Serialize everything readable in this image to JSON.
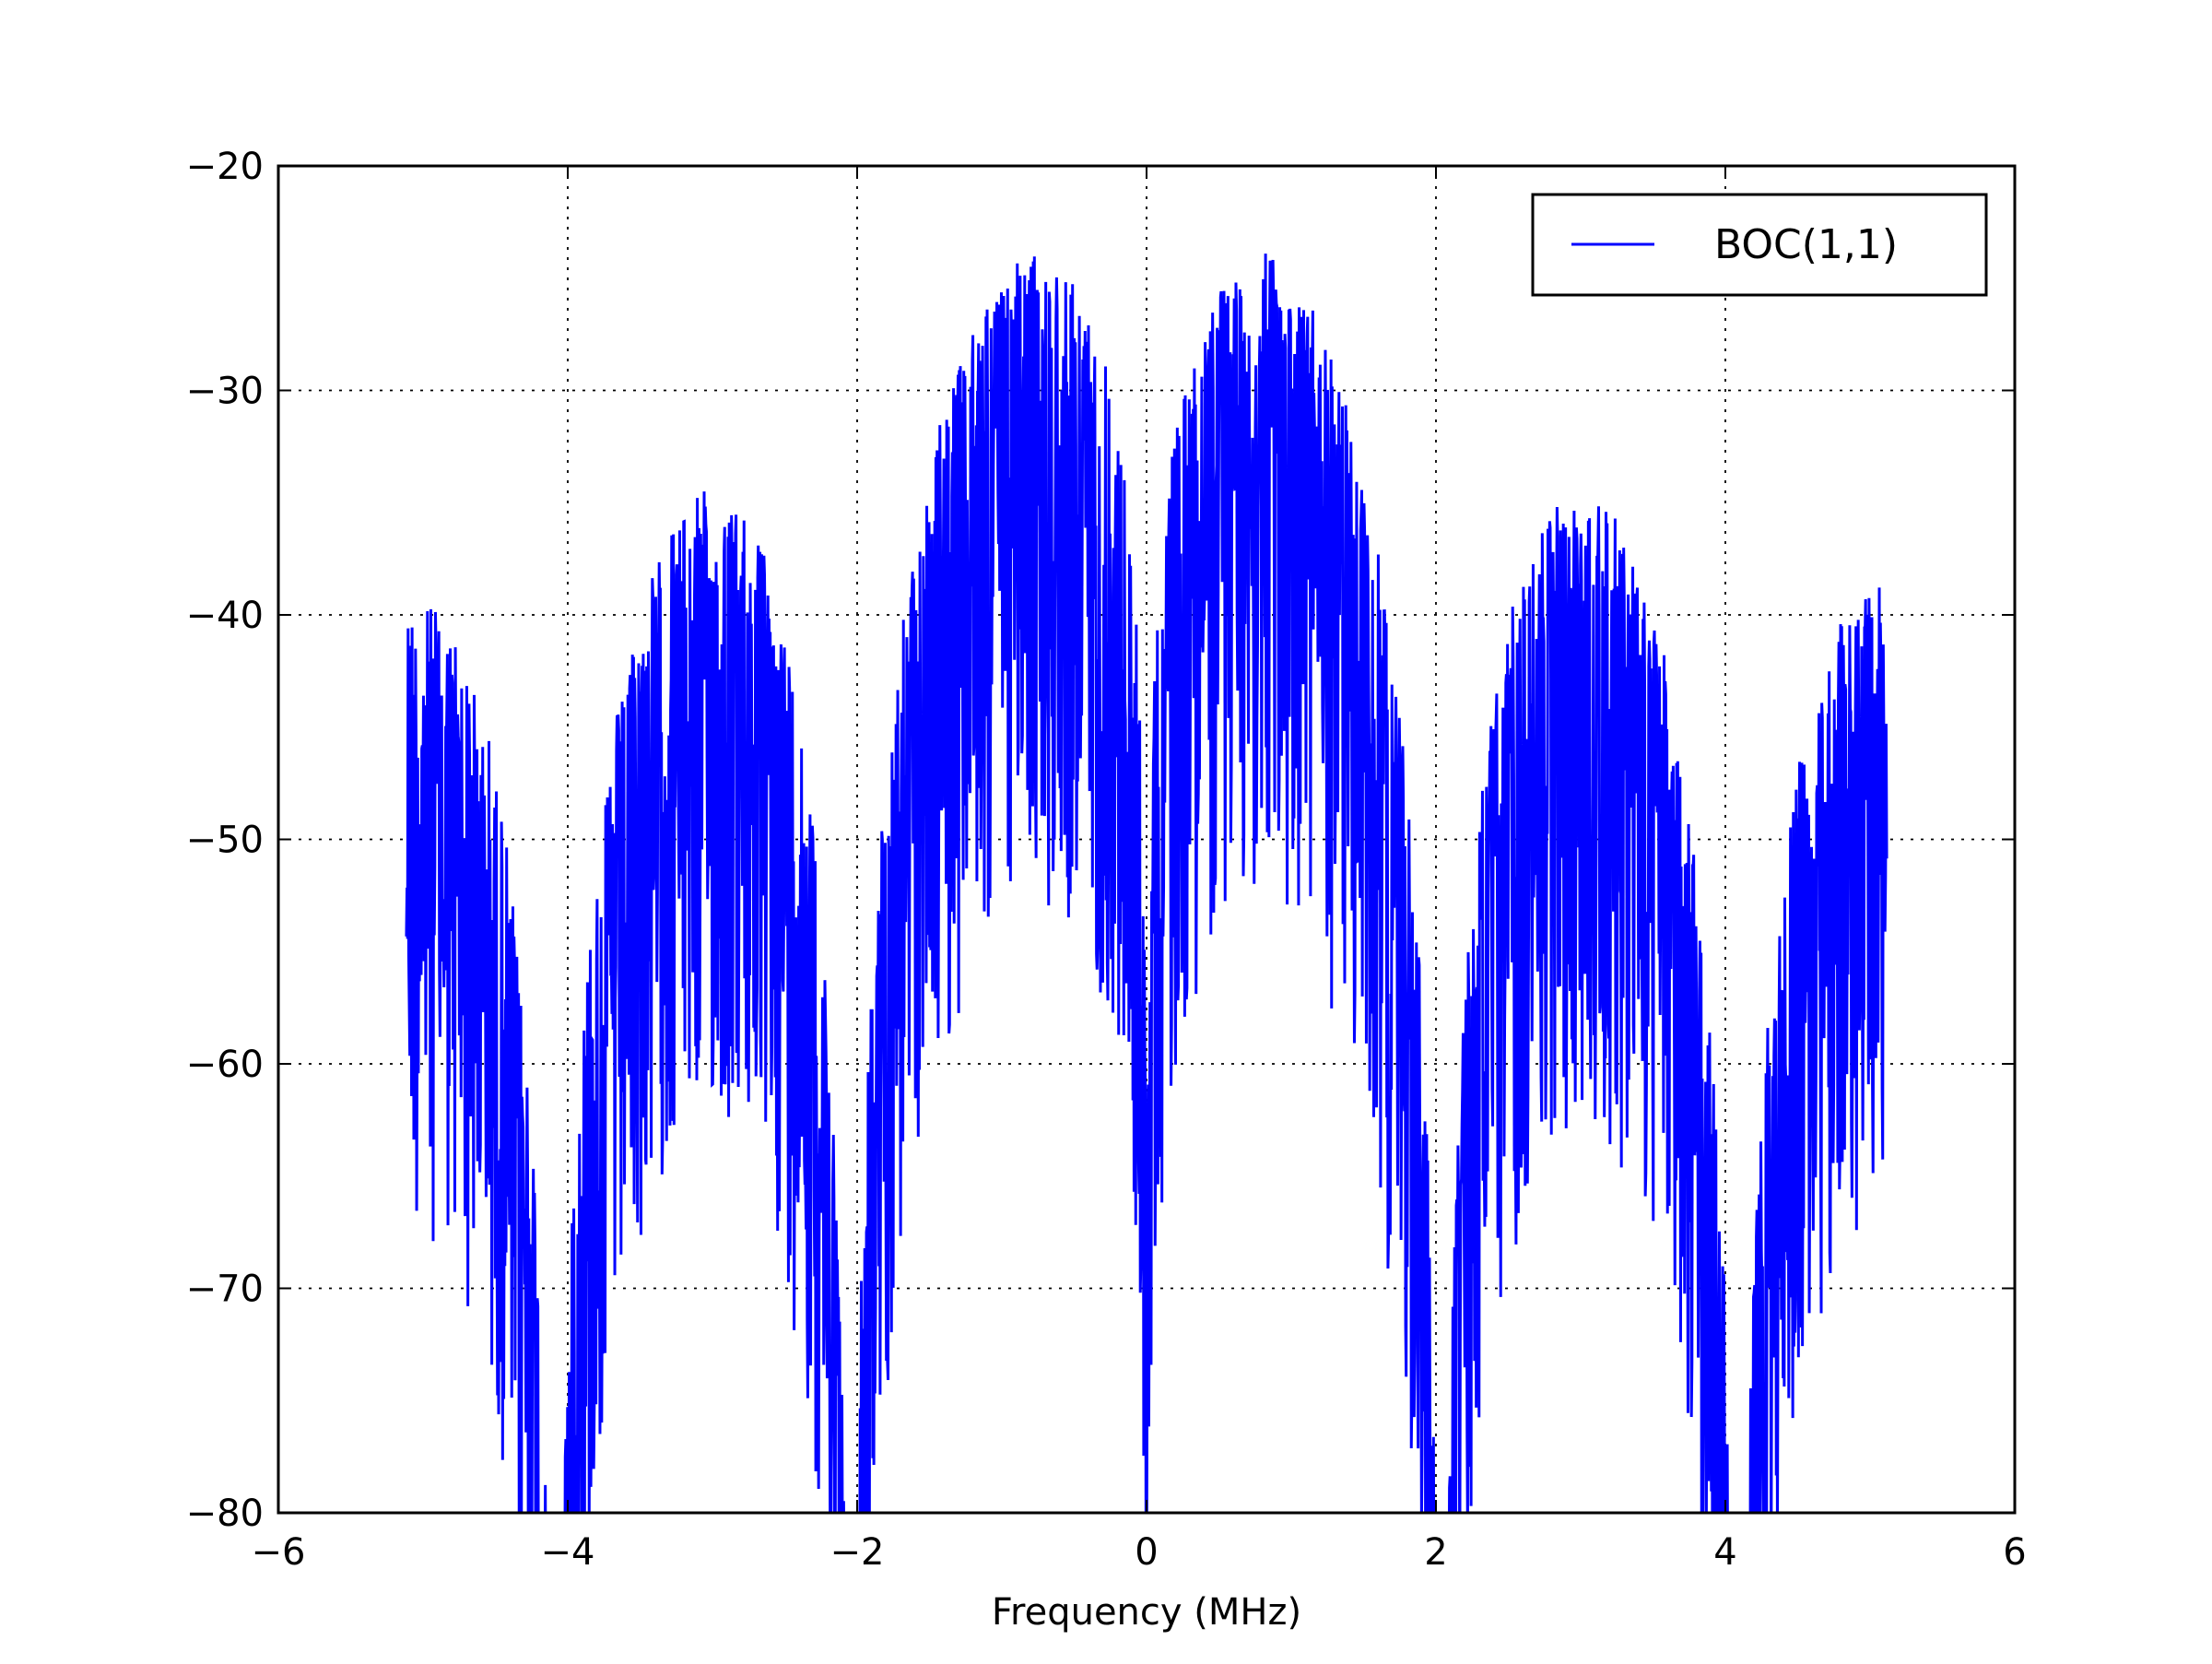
{
  "chart_data": {
    "type": "line",
    "title": "",
    "xlabel": "Frequency (MHz)",
    "ylabel": "",
    "xlim": [
      -6,
      6
    ],
    "ylim": [
      -80,
      -20
    ],
    "x_ticks": [
      -6,
      -4,
      -2,
      0,
      2,
      4,
      6
    ],
    "y_ticks": [
      -80,
      -70,
      -60,
      -50,
      -40,
      -30,
      -20
    ],
    "x_tick_labels": [
      "−6",
      "−4",
      "−2",
      "0",
      "2",
      "4",
      "6"
    ],
    "y_tick_labels": [
      "−80",
      "−70",
      "−60",
      "−50",
      "−40",
      "−30",
      "−20"
    ],
    "grid": true,
    "legend_position": "top-right",
    "series": [
      {
        "name": "BOC(1,1)",
        "color": "#0000ff",
        "x_range": [
          -5.115,
          5.115
        ],
        "envelope_peaks_db": [
          [
            -5.1,
            -37.5
          ],
          [
            -4.2,
            -80
          ],
          [
            -3.0,
            -35.7
          ],
          [
            -2.0,
            -80
          ],
          [
            -0.8,
            -26.5
          ],
          [
            0.0,
            -80
          ],
          [
            0.8,
            -26.5
          ],
          [
            2.0,
            -80
          ],
          [
            3.0,
            -35.7
          ],
          [
            4.2,
            -80
          ],
          [
            5.1,
            -37.7
          ]
        ]
      }
    ]
  }
}
